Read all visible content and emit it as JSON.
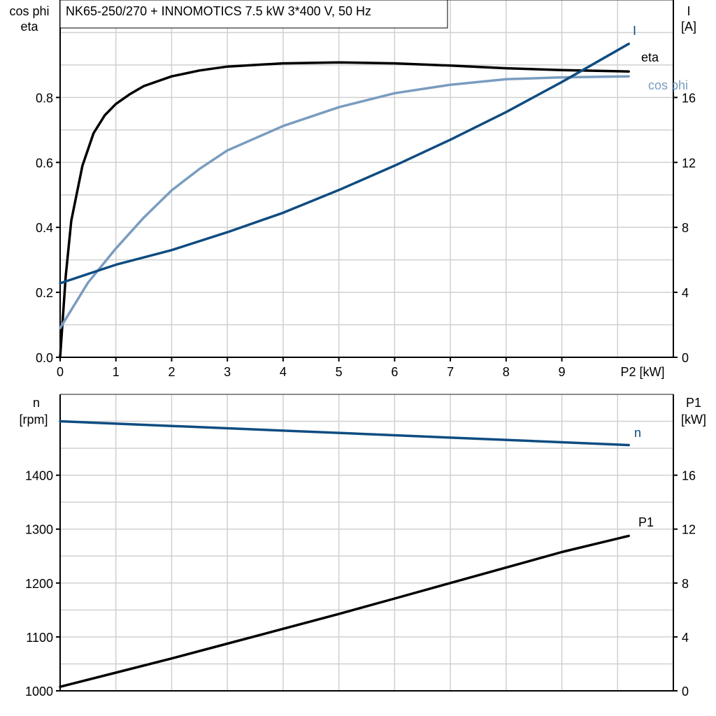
{
  "chart_data": [
    {
      "type": "line",
      "title": "NK65-250/270 + INNOMOTICS   7.5 kW   3*400 V, 50 Hz",
      "xlabel": "P2 [kW]",
      "xlim": [
        0,
        11
      ],
      "xticks": [
        "0",
        "1",
        "2",
        "3",
        "4",
        "5",
        "6",
        "7",
        "8",
        "9"
      ],
      "ylabel_left": [
        "cos phi",
        "eta"
      ],
      "ylim_left": [
        0,
        1.1
      ],
      "yticks_left": [
        "0.0",
        "0.2",
        "0.4",
        "0.6",
        "0.8"
      ],
      "ylabel_right": [
        "I",
        "[A]"
      ],
      "ylim_right": [
        0,
        22
      ],
      "yticks_right": [
        "0",
        "4",
        "8",
        "12",
        "16"
      ],
      "grid": true,
      "series": [
        {
          "name": "eta",
          "axis": "left",
          "color": "#000000",
          "x": [
            0,
            0.1,
            0.2,
            0.4,
            0.6,
            0.8,
            1,
            1.25,
            1.5,
            2,
            2.5,
            3,
            4,
            5,
            6,
            7,
            8,
            9,
            10.2
          ],
          "y": [
            0,
            0.25,
            0.42,
            0.59,
            0.69,
            0.745,
            0.78,
            0.81,
            0.835,
            0.865,
            0.883,
            0.895,
            0.905,
            0.908,
            0.905,
            0.898,
            0.89,
            0.884,
            0.88
          ]
        },
        {
          "name": "cos phi",
          "axis": "left",
          "color": "#7a9cbf",
          "x": [
            0,
            0.5,
            1,
            1.5,
            2,
            2.5,
            3,
            4,
            5,
            6,
            7,
            8,
            9,
            10.2
          ],
          "y": [
            0.09,
            0.23,
            0.335,
            0.43,
            0.514,
            0.58,
            0.637,
            0.712,
            0.77,
            0.813,
            0.839,
            0.856,
            0.862,
            0.865
          ]
        },
        {
          "name": "I",
          "axis": "right",
          "color": "#0f4c81",
          "x": [
            0,
            1,
            2,
            3,
            4,
            5,
            6,
            7,
            8,
            9,
            10.2
          ],
          "y": [
            4.56,
            5.7,
            6.6,
            7.7,
            8.9,
            10.3,
            11.8,
            13.4,
            15.1,
            16.95,
            19.3
          ]
        }
      ]
    },
    {
      "type": "line",
      "xlim": [
        0,
        11
      ],
      "ylabel_left": [
        "n",
        "[rpm]"
      ],
      "ylim_left": [
        1000,
        1550
      ],
      "yticks_left": [
        "1000",
        "1100",
        "1200",
        "1300",
        "1400"
      ],
      "ylabel_right": [
        "P1",
        "[kW]"
      ],
      "ylim_right": [
        0,
        22
      ],
      "yticks_right": [
        "0",
        "4",
        "8",
        "12",
        "16"
      ],
      "grid": true,
      "series": [
        {
          "name": "n",
          "axis": "left",
          "color": "#0f4c81",
          "x": [
            0,
            10.2
          ],
          "y": [
            1500,
            1456
          ]
        },
        {
          "name": "P1",
          "axis": "right",
          "color": "#000000",
          "x": [
            0,
            1,
            2,
            3,
            4,
            5,
            6,
            7,
            8,
            9,
            10.2
          ],
          "y": [
            0.3,
            1.35,
            2.4,
            3.5,
            4.6,
            5.7,
            6.85,
            8.0,
            9.15,
            10.3,
            11.5
          ]
        }
      ]
    }
  ]
}
